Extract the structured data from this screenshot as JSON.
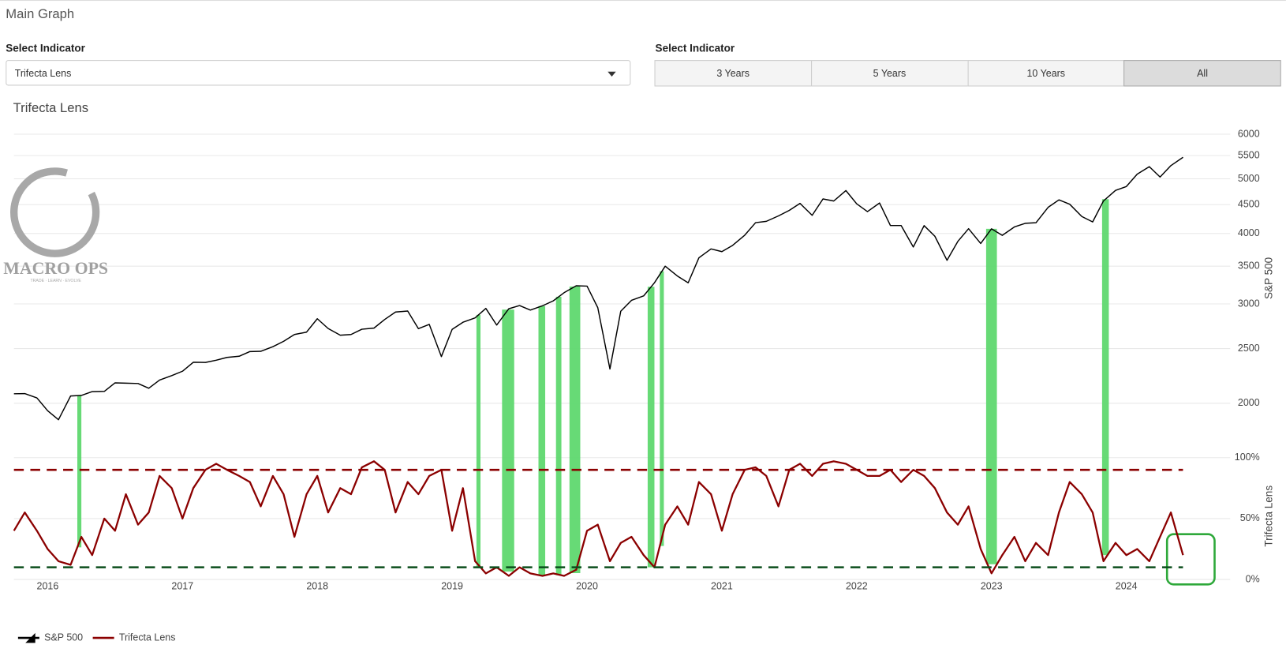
{
  "header": {
    "title": "Main Graph"
  },
  "controls": {
    "indicator": {
      "label": "Select Indicator",
      "selected": "Trifecta Lens"
    },
    "range": {
      "label": "Select Indicator",
      "options": [
        "3 Years",
        "5 Years",
        "10 Years",
        "All"
      ],
      "active": "All"
    }
  },
  "logo": {
    "name": "MACRO OPS",
    "tagline": "TRADE · LEARN · EVOLVE"
  },
  "chart_data": {
    "type": "line",
    "title": "Trifecta Lens",
    "ylabel": "S&P 500",
    "y2label": "Trifecta Lens",
    "log_y": true,
    "grid": true,
    "legend": "bottom-left",
    "xlim": [
      2015.75,
      2024.77
    ],
    "xticks": [
      2016,
      2017,
      2018,
      2019,
      2020,
      2021,
      2022,
      2023,
      2024
    ],
    "ylim": [
      1690,
      6300
    ],
    "yticks": [
      2000,
      2500,
      3000,
      3500,
      4000,
      4500,
      5000,
      5500,
      6000
    ],
    "y2lim": [
      0,
      100
    ],
    "y2ticks": [
      {
        "value": 0,
        "label": "0%"
      },
      {
        "value": 50,
        "label": "50%"
      },
      {
        "value": 100,
        "label": "100%"
      }
    ],
    "x": [
      2015.75,
      2015.83,
      2015.92,
      2016,
      2016.08,
      2016.17,
      2016.25,
      2016.33,
      2016.42,
      2016.5,
      2016.58,
      2016.67,
      2016.75,
      2016.83,
      2016.92,
      2017,
      2017.08,
      2017.17,
      2017.25,
      2017.33,
      2017.42,
      2017.5,
      2017.58,
      2017.67,
      2017.75,
      2017.83,
      2017.92,
      2018,
      2018.08,
      2018.17,
      2018.25,
      2018.33,
      2018.42,
      2018.5,
      2018.58,
      2018.67,
      2018.75,
      2018.83,
      2018.92,
      2019,
      2019.08,
      2019.17,
      2019.25,
      2019.33,
      2019.42,
      2019.5,
      2019.58,
      2019.67,
      2019.75,
      2019.83,
      2019.92,
      2020,
      2020.08,
      2020.17,
      2020.25,
      2020.33,
      2020.42,
      2020.5,
      2020.58,
      2020.67,
      2020.75,
      2020.83,
      2020.92,
      2021,
      2021.08,
      2021.17,
      2021.25,
      2021.33,
      2021.42,
      2021.5,
      2021.58,
      2021.67,
      2021.75,
      2021.83,
      2021.92,
      2022,
      2022.08,
      2022.17,
      2022.25,
      2022.33,
      2022.42,
      2022.5,
      2022.58,
      2022.67,
      2022.75,
      2022.83,
      2022.92,
      2023,
      2023.08,
      2023.17,
      2023.25,
      2023.33,
      2023.42,
      2023.5,
      2023.58,
      2023.67,
      2023.75,
      2023.83,
      2023.92,
      2024,
      2024.08,
      2024.17,
      2024.25,
      2024.33,
      2024.42
    ],
    "series": [
      {
        "name": "S&P 500",
        "color": "#000000",
        "axis": "y",
        "values": [
          2079,
          2080,
          2044,
          1940,
          1870,
          2060,
          2065,
          2097,
          2099,
          2174,
          2171,
          2168,
          2126,
          2199,
          2239,
          2279,
          2364,
          2363,
          2384,
          2412,
          2423,
          2470,
          2472,
          2519,
          2575,
          2648,
          2674,
          2824,
          2714,
          2641,
          2648,
          2705,
          2718,
          2816,
          2902,
          2914,
          2712,
          2760,
          2420,
          2704,
          2784,
          2834,
          2946,
          2752,
          2942,
          2980,
          2926,
          2977,
          3038,
          3141,
          3231,
          3226,
          2954,
          2300,
          2912,
          3044,
          3100,
          3271,
          3500,
          3363,
          3270,
          3622,
          3756,
          3714,
          3811,
          3973,
          4181,
          4204,
          4298,
          4395,
          4523,
          4308,
          4605,
          4567,
          4766,
          4516,
          4374,
          4530,
          4132,
          4132,
          3785,
          4130,
          3955,
          3586,
          3872,
          4080,
          3840,
          4077,
          3970,
          4109,
          4169,
          4180,
          4450,
          4589,
          4508,
          4288,
          4194,
          4568,
          4770,
          4846,
          5096,
          5254,
          5036,
          5278,
          5460
        ]
      },
      {
        "name": "Trifecta Lens",
        "color": "#8b0000",
        "axis": "y2",
        "values": [
          40,
          55,
          40,
          25,
          15,
          12,
          35,
          20,
          50,
          40,
          70,
          45,
          55,
          85,
          75,
          50,
          75,
          90,
          95,
          90,
          85,
          80,
          60,
          85,
          70,
          35,
          70,
          85,
          55,
          75,
          70,
          92,
          97,
          90,
          55,
          80,
          70,
          85,
          90,
          40,
          75,
          15,
          5,
          10,
          3,
          10,
          5,
          3,
          5,
          3,
          8,
          40,
          45,
          15,
          30,
          35,
          20,
          10,
          45,
          60,
          45,
          80,
          70,
          40,
          70,
          90,
          92,
          85,
          60,
          90,
          95,
          85,
          95,
          97,
          95,
          90,
          85,
          85,
          90,
          80,
          90,
          85,
          75,
          55,
          45,
          60,
          25,
          5,
          20,
          35,
          15,
          30,
          20,
          55,
          80,
          70,
          55,
          15,
          30,
          20,
          25,
          15,
          35,
          55,
          20
        ]
      }
    ],
    "reference_lines": [
      {
        "value": 90,
        "color": "#8b0000",
        "axis": "y2"
      },
      {
        "value": 10,
        "color": "#0b4d1c",
        "axis": "y2"
      }
    ],
    "highlight_color": "#5fd86f",
    "highlights": [
      [
        2016.22,
        2016.25
      ],
      [
        2019.18,
        2019.21
      ],
      [
        2019.37,
        2019.46
      ],
      [
        2019.64,
        2019.69
      ],
      [
        2019.77,
        2019.81
      ],
      [
        2019.87,
        2019.95
      ],
      [
        2020.45,
        2020.5
      ],
      [
        2020.54,
        2020.57
      ],
      [
        2022.96,
        2023.04
      ],
      [
        2023.82,
        2023.87
      ]
    ]
  }
}
